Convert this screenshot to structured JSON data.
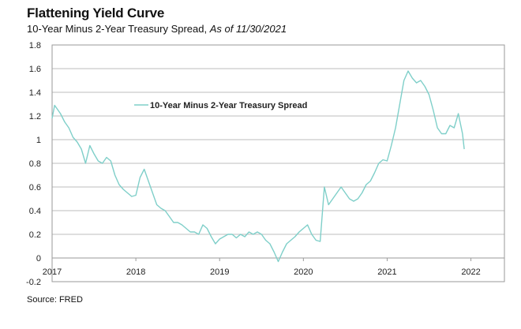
{
  "header": {
    "title": "Flattening Yield Curve",
    "subtitle_main": "10-Year Minus 2-Year Treasury Spread,",
    "subtitle_asof": "As of 11/30/2021"
  },
  "footer": {
    "source": "Source: FRED"
  },
  "colors": {
    "series": "#7fcfc9",
    "grid": "#a8a8a8",
    "frame": "#9a9a9a"
  },
  "chart_data": {
    "type": "line",
    "title": "Flattening Yield Curve",
    "subtitle": "10-Year Minus 2-Year Treasury Spread, As of 11/30/2021",
    "xlabel": "",
    "ylabel": "",
    "xlim": [
      2017,
      2022.4
    ],
    "ylim": [
      -0.2,
      1.8
    ],
    "x_ticks": [
      2017,
      2018,
      2019,
      2020,
      2021,
      2022
    ],
    "x_tick_labels": [
      "2017",
      "2018",
      "2019",
      "2020",
      "2021",
      "2022"
    ],
    "y_ticks": [
      -0.2,
      0,
      0.2,
      0.4,
      0.6,
      0.8,
      1,
      1.2,
      1.4,
      1.6,
      1.8
    ],
    "y_tick_labels": [
      "-0.2",
      "0",
      "0.2",
      "0.4",
      "0.6",
      "0.8",
      "1",
      "1.2",
      "1.4",
      "1.6",
      "1.8"
    ],
    "grid": "horizontal",
    "legend": "upper-left inside plot",
    "series": [
      {
        "name": "10-Year Minus 2-Year Treasury Spread",
        "x": [
          2017.0,
          2017.03,
          2017.06,
          2017.1,
          2017.15,
          2017.2,
          2017.25,
          2017.3,
          2017.35,
          2017.4,
          2017.45,
          2017.5,
          2017.55,
          2017.6,
          2017.65,
          2017.7,
          2017.75,
          2017.8,
          2017.85,
          2017.9,
          2017.95,
          2018.0,
          2018.05,
          2018.1,
          2018.15,
          2018.2,
          2018.25,
          2018.3,
          2018.35,
          2018.4,
          2018.45,
          2018.5,
          2018.55,
          2018.6,
          2018.65,
          2018.7,
          2018.75,
          2018.8,
          2018.85,
          2018.9,
          2018.95,
          2019.0,
          2019.05,
          2019.1,
          2019.15,
          2019.2,
          2019.25,
          2019.3,
          2019.35,
          2019.4,
          2019.45,
          2019.5,
          2019.55,
          2019.6,
          2019.65,
          2019.7,
          2019.75,
          2019.8,
          2019.85,
          2019.9,
          2019.95,
          2020.0,
          2020.05,
          2020.1,
          2020.15,
          2020.2,
          2020.25,
          2020.3,
          2020.35,
          2020.4,
          2020.45,
          2020.5,
          2020.55,
          2020.6,
          2020.65,
          2020.7,
          2020.75,
          2020.8,
          2020.85,
          2020.9,
          2020.95,
          2021.0,
          2021.05,
          2021.1,
          2021.15,
          2021.2,
          2021.25,
          2021.3,
          2021.35,
          2021.4,
          2021.45,
          2021.5,
          2021.55,
          2021.6,
          2021.65,
          2021.7,
          2021.75,
          2021.8,
          2021.85,
          2021.9,
          2021.92
        ],
        "values": [
          1.18,
          1.29,
          1.26,
          1.22,
          1.15,
          1.1,
          1.02,
          0.98,
          0.92,
          0.8,
          0.95,
          0.88,
          0.82,
          0.8,
          0.85,
          0.82,
          0.7,
          0.62,
          0.58,
          0.55,
          0.52,
          0.53,
          0.68,
          0.75,
          0.65,
          0.55,
          0.45,
          0.42,
          0.4,
          0.35,
          0.3,
          0.3,
          0.28,
          0.25,
          0.22,
          0.22,
          0.2,
          0.28,
          0.25,
          0.18,
          0.12,
          0.16,
          0.18,
          0.2,
          0.2,
          0.17,
          0.2,
          0.18,
          0.22,
          0.2,
          0.22,
          0.2,
          0.15,
          0.12,
          0.05,
          -0.03,
          0.05,
          0.12,
          0.15,
          0.18,
          0.22,
          0.25,
          0.28,
          0.2,
          0.15,
          0.14,
          0.6,
          0.45,
          0.5,
          0.55,
          0.6,
          0.55,
          0.5,
          0.48,
          0.5,
          0.55,
          0.62,
          0.65,
          0.72,
          0.8,
          0.83,
          0.82,
          0.95,
          1.1,
          1.3,
          1.5,
          1.58,
          1.52,
          1.48,
          1.5,
          1.45,
          1.38,
          1.25,
          1.1,
          1.05,
          1.05,
          1.12,
          1.1,
          1.22,
          1.05,
          0.92
        ]
      }
    ]
  }
}
